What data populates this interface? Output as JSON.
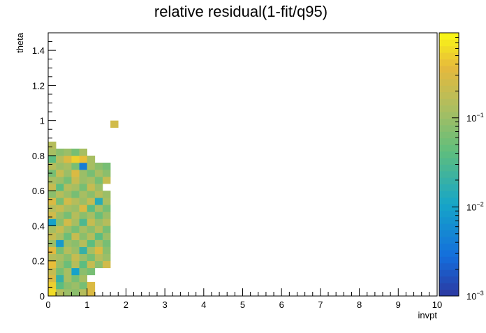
{
  "chart_data": {
    "type": "heatmap",
    "title": "relative residual(1-fit/q95)",
    "xlabel": "invpt",
    "ylabel": "theta",
    "xlim": [
      0,
      10
    ],
    "ylim": [
      0,
      1.5
    ],
    "x_ticks": [
      "0",
      "1",
      "2",
      "3",
      "4",
      "5",
      "6",
      "7",
      "8",
      "9",
      "10"
    ],
    "y_ticks": [
      "0",
      "0.2",
      "0.4",
      "0.6",
      "0.8",
      "1",
      "1.2",
      "1.4"
    ],
    "colorbar": {
      "scale": "log",
      "range": [
        0.001,
        0.9
      ],
      "tick_labels": [
        {
          "base": "10",
          "exp": "−3",
          "value": 0.001
        },
        {
          "base": "10",
          "exp": "−2",
          "value": 0.01
        },
        {
          "base": "10",
          "exp": "−1",
          "value": 0.1
        }
      ]
    },
    "bin_size": {
      "x": 0.2,
      "y": 0.04
    },
    "bins_note": "each bin: [x_low, y_low, value]",
    "bins": [
      [
        0.0,
        0.0,
        0.6
      ],
      [
        0.2,
        0.0,
        0.15
      ],
      [
        0.4,
        0.0,
        0.1
      ],
      [
        0.6,
        0.0,
        0.08
      ],
      [
        0.8,
        0.0,
        0.15
      ],
      [
        1.0,
        0.0,
        0.3
      ],
      [
        0.0,
        0.04,
        0.5
      ],
      [
        0.2,
        0.04,
        0.04
      ],
      [
        0.4,
        0.04,
        0.08
      ],
      [
        0.6,
        0.04,
        0.1
      ],
      [
        0.8,
        0.04,
        0.06
      ],
      [
        1.0,
        0.04,
        0.3
      ],
      [
        0.0,
        0.08,
        0.3
      ],
      [
        0.2,
        0.08,
        0.02
      ],
      [
        0.4,
        0.08,
        0.12
      ],
      [
        0.6,
        0.08,
        0.06
      ],
      [
        0.8,
        0.08,
        0.12
      ],
      [
        0.0,
        0.12,
        0.2
      ],
      [
        0.2,
        0.12,
        0.06
      ],
      [
        0.4,
        0.12,
        0.12
      ],
      [
        0.6,
        0.12,
        0.01
      ],
      [
        0.8,
        0.12,
        0.08
      ],
      [
        1.0,
        0.12,
        0.06
      ],
      [
        0.0,
        0.16,
        0.4
      ],
      [
        0.2,
        0.16,
        0.1
      ],
      [
        0.4,
        0.16,
        0.05
      ],
      [
        0.6,
        0.16,
        0.15
      ],
      [
        0.8,
        0.16,
        0.04
      ],
      [
        1.0,
        0.16,
        0.2
      ],
      [
        1.2,
        0.16,
        0.08
      ],
      [
        1.4,
        0.16,
        0.25
      ],
      [
        0.0,
        0.2,
        0.15
      ],
      [
        0.2,
        0.2,
        0.12
      ],
      [
        0.4,
        0.2,
        0.08
      ],
      [
        0.6,
        0.2,
        0.2
      ],
      [
        0.8,
        0.2,
        0.1
      ],
      [
        1.0,
        0.2,
        0.06
      ],
      [
        1.2,
        0.2,
        0.15
      ],
      [
        1.4,
        0.2,
        0.1
      ],
      [
        0.0,
        0.24,
        0.35
      ],
      [
        0.2,
        0.24,
        0.06
      ],
      [
        0.4,
        0.24,
        0.15
      ],
      [
        0.6,
        0.24,
        0.1
      ],
      [
        0.8,
        0.24,
        0.02
      ],
      [
        1.0,
        0.24,
        0.12
      ],
      [
        1.2,
        0.24,
        0.3
      ],
      [
        1.4,
        0.24,
        0.08
      ],
      [
        0.0,
        0.28,
        0.1
      ],
      [
        0.2,
        0.28,
        0.008
      ],
      [
        0.4,
        0.28,
        0.1
      ],
      [
        0.6,
        0.28,
        0.08
      ],
      [
        0.8,
        0.28,
        0.15
      ],
      [
        1.0,
        0.28,
        0.04
      ],
      [
        1.2,
        0.28,
        0.12
      ],
      [
        1.4,
        0.28,
        0.06
      ],
      [
        0.0,
        0.32,
        0.2
      ],
      [
        0.2,
        0.32,
        0.12
      ],
      [
        0.4,
        0.32,
        0.05
      ],
      [
        0.6,
        0.32,
        0.2
      ],
      [
        0.8,
        0.32,
        0.08
      ],
      [
        1.0,
        0.32,
        0.15
      ],
      [
        1.2,
        0.32,
        0.04
      ],
      [
        1.4,
        0.32,
        0.1
      ],
      [
        0.0,
        0.36,
        0.12
      ],
      [
        0.2,
        0.36,
        0.2
      ],
      [
        0.4,
        0.36,
        0.1
      ],
      [
        0.6,
        0.36,
        0.06
      ],
      [
        0.8,
        0.36,
        0.12
      ],
      [
        1.0,
        0.36,
        0.08
      ],
      [
        1.2,
        0.36,
        0.15
      ],
      [
        1.4,
        0.36,
        0.06
      ],
      [
        0.0,
        0.4,
        0.01
      ],
      [
        0.2,
        0.4,
        0.08
      ],
      [
        0.4,
        0.4,
        0.25
      ],
      [
        0.6,
        0.4,
        0.12
      ],
      [
        0.8,
        0.4,
        0.03
      ],
      [
        1.0,
        0.4,
        0.2
      ],
      [
        1.2,
        0.4,
        0.1
      ],
      [
        1.4,
        0.4,
        0.15
      ],
      [
        0.0,
        0.44,
        0.25
      ],
      [
        0.2,
        0.44,
        0.1
      ],
      [
        0.4,
        0.44,
        0.06
      ],
      [
        0.6,
        0.44,
        0.15
      ],
      [
        0.8,
        0.44,
        0.08
      ],
      [
        1.0,
        0.44,
        0.12
      ],
      [
        1.2,
        0.44,
        0.05
      ],
      [
        1.4,
        0.44,
        0.1
      ],
      [
        0.0,
        0.48,
        0.15
      ],
      [
        0.2,
        0.48,
        0.2
      ],
      [
        0.4,
        0.48,
        0.12
      ],
      [
        0.6,
        0.48,
        0.1
      ],
      [
        0.8,
        0.48,
        0.3
      ],
      [
        1.0,
        0.48,
        0.04
      ],
      [
        1.2,
        0.48,
        0.12
      ],
      [
        1.4,
        0.48,
        0.06
      ],
      [
        0.0,
        0.52,
        0.3
      ],
      [
        0.2,
        0.52,
        0.06
      ],
      [
        0.4,
        0.52,
        0.25
      ],
      [
        0.6,
        0.52,
        0.15
      ],
      [
        0.8,
        0.52,
        0.1
      ],
      [
        1.0,
        0.52,
        0.2
      ],
      [
        1.2,
        0.52,
        0.015
      ],
      [
        1.4,
        0.52,
        0.12
      ],
      [
        0.0,
        0.56,
        0.08
      ],
      [
        0.2,
        0.56,
        0.15
      ],
      [
        0.4,
        0.56,
        0.1
      ],
      [
        0.6,
        0.56,
        0.06
      ],
      [
        0.8,
        0.56,
        0.12
      ],
      [
        1.0,
        0.56,
        0.08
      ],
      [
        1.2,
        0.56,
        0.15
      ],
      [
        1.4,
        0.56,
        0.1
      ],
      [
        0.0,
        0.6,
        0.2
      ],
      [
        0.2,
        0.6,
        0.04
      ],
      [
        0.4,
        0.6,
        0.15
      ],
      [
        0.6,
        0.6,
        0.12
      ],
      [
        0.8,
        0.6,
        0.06
      ],
      [
        1.0,
        0.6,
        0.2
      ],
      [
        1.2,
        0.6,
        0.1
      ],
      [
        0.0,
        0.64,
        0.12
      ],
      [
        0.2,
        0.64,
        0.1
      ],
      [
        0.4,
        0.64,
        0.06
      ],
      [
        0.6,
        0.64,
        0.2
      ],
      [
        0.8,
        0.64,
        0.1
      ],
      [
        1.0,
        0.64,
        0.12
      ],
      [
        1.2,
        0.64,
        0.06
      ],
      [
        1.4,
        0.64,
        0.2
      ],
      [
        0.0,
        0.68,
        0.06
      ],
      [
        0.2,
        0.68,
        0.2
      ],
      [
        0.4,
        0.68,
        0.1
      ],
      [
        0.6,
        0.68,
        0.3
      ],
      [
        0.8,
        0.68,
        0.1
      ],
      [
        1.0,
        0.68,
        0.06
      ],
      [
        1.2,
        0.68,
        0.12
      ],
      [
        1.4,
        0.68,
        0.08
      ],
      [
        0.0,
        0.72,
        0.15
      ],
      [
        0.2,
        0.72,
        0.1
      ],
      [
        0.4,
        0.72,
        0.12
      ],
      [
        0.6,
        0.72,
        0.06
      ],
      [
        0.8,
        0.72,
        0.004
      ],
      [
        1.0,
        0.72,
        0.12
      ],
      [
        1.2,
        0.72,
        0.08
      ],
      [
        1.4,
        0.72,
        0.06
      ],
      [
        0.0,
        0.76,
        0.04
      ],
      [
        0.2,
        0.76,
        0.15
      ],
      [
        0.4,
        0.76,
        0.3
      ],
      [
        0.6,
        0.76,
        0.5
      ],
      [
        0.8,
        0.76,
        0.4
      ],
      [
        1.0,
        0.76,
        0.12
      ],
      [
        0.0,
        0.8,
        0.12
      ],
      [
        0.2,
        0.8,
        0.08
      ],
      [
        0.4,
        0.8,
        0.1
      ],
      [
        0.6,
        0.8,
        0.06
      ],
      [
        0.8,
        0.8,
        0.12
      ],
      [
        0.0,
        0.84,
        0.15
      ],
      [
        1.6,
        0.96,
        0.25
      ]
    ]
  }
}
